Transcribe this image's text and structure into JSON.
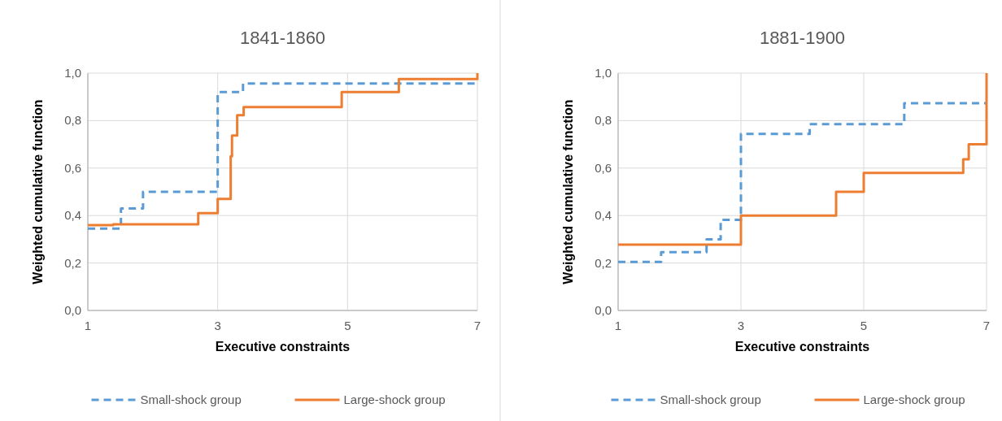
{
  "chart_data": [
    {
      "type": "step",
      "title": "1841-1860",
      "xlabel": "Executive constraints",
      "ylabel": "Weighted cumulative function",
      "xlim": [
        1,
        7
      ],
      "xticks": [
        1,
        3,
        5,
        7
      ],
      "ylim": [
        0,
        1
      ],
      "yticks": [
        {
          "value": 0,
          "label": "0,0"
        },
        {
          "value": 0.2,
          "label": "0,2"
        },
        {
          "value": 0.4,
          "label": "0,4"
        },
        {
          "value": 0.6,
          "label": "0,6"
        },
        {
          "value": 0.8,
          "label": "0,8"
        },
        {
          "value": 1,
          "label": "1,0"
        }
      ],
      "grid": true,
      "legend": "bottom",
      "series": [
        {
          "name": "Small-shock group",
          "color": "#5b9bd5",
          "line_style": "dashed",
          "x": [
            1,
            1.51,
            1.85,
            3.0,
            3.39,
            7
          ],
          "values": [
            0.345,
            0.43,
            0.5,
            0.92,
            0.956,
            0.956
          ]
        },
        {
          "name": "Large-shock group",
          "color": "#ed7d31",
          "line_style": "solid",
          "x": [
            1,
            1.39,
            2.7,
            3.0,
            3.2,
            3.22,
            3.3,
            3.4,
            4.91,
            5.79,
            7
          ],
          "values": [
            0.36,
            0.363,
            0.41,
            0.47,
            0.65,
            0.737,
            0.823,
            0.857,
            0.92,
            0.975,
            1.0
          ]
        }
      ]
    },
    {
      "type": "step",
      "title": "1881-1900",
      "xlabel": "Executive constraints",
      "ylabel": "Weighted cumulative function",
      "xlim": [
        1,
        7
      ],
      "xticks": [
        1,
        3,
        5,
        7
      ],
      "ylim": [
        0,
        1
      ],
      "yticks": [
        {
          "value": 0,
          "label": "0,0"
        },
        {
          "value": 0.2,
          "label": "0,2"
        },
        {
          "value": 0.4,
          "label": "0,4"
        },
        {
          "value": 0.6,
          "label": "0,6"
        },
        {
          "value": 0.8,
          "label": "0,8"
        },
        {
          "value": 1,
          "label": "1,0"
        }
      ],
      "grid": true,
      "legend": "bottom",
      "series": [
        {
          "name": "Small-shock group",
          "color": "#5b9bd5",
          "line_style": "dashed",
          "x": [
            1,
            1.7,
            2.44,
            2.67,
            3.0,
            4.12,
            5.66,
            7
          ],
          "values": [
            0.205,
            0.246,
            0.3,
            0.382,
            0.744,
            0.785,
            0.873,
            0.873
          ]
        },
        {
          "name": "Large-shock group",
          "color": "#ed7d31",
          "line_style": "solid",
          "x": [
            1,
            3.0,
            4.55,
            5.0,
            6.62,
            6.71,
            7
          ],
          "values": [
            0.277,
            0.4,
            0.5,
            0.58,
            0.637,
            0.7,
            1.0
          ]
        }
      ]
    }
  ]
}
